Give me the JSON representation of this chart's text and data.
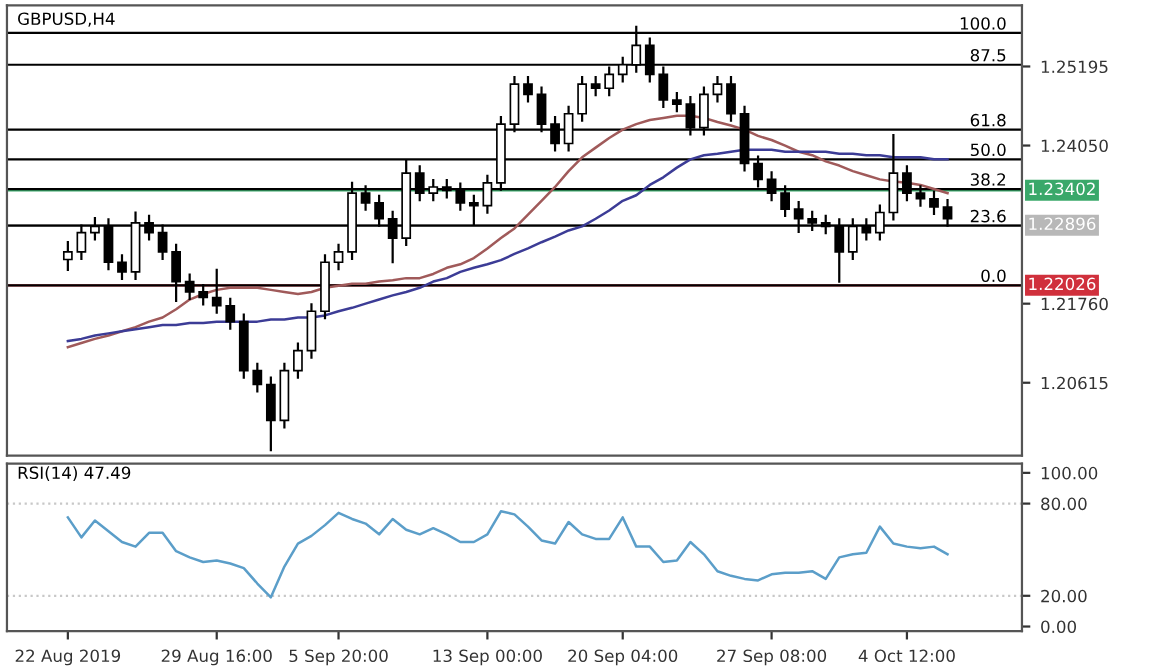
{
  "chart_data": [
    {
      "type": "candlestick",
      "title": "GBPUSD,H4",
      "tick_labels": "y",
      "grid": false,
      "color": "#000000",
      "categories": [
        null,
        null,
        null,
        null,
        null,
        null,
        null,
        null,
        null,
        null,
        null,
        null,
        null,
        null,
        null,
        null,
        null,
        null,
        null,
        null,
        null,
        null,
        null,
        null,
        null,
        null,
        null,
        null,
        null,
        null,
        null,
        null,
        null,
        null,
        null,
        null,
        null,
        null,
        null,
        null,
        null,
        null,
        null,
        null,
        null,
        null,
        null,
        null,
        null,
        null,
        null,
        null,
        null,
        null,
        null,
        null,
        null,
        null,
        null,
        null,
        null,
        null,
        null,
        null,
        null,
        null
      ],
      "ohlc": [
        [
          1.224,
          1.2265,
          1.2225,
          1.2251
        ],
        [
          1.2251,
          1.2289,
          1.2241,
          1.2279
        ],
        [
          1.2279,
          1.23,
          1.2269,
          1.2288
        ],
        [
          1.2288,
          1.2298,
          1.2226,
          1.2236
        ],
        [
          1.2236,
          1.2246,
          1.2212,
          1.2222
        ],
        [
          1.2222,
          1.2308,
          1.2212,
          1.2293
        ],
        [
          1.2293,
          1.2303,
          1.2269,
          1.2279
        ],
        [
          1.2279,
          1.2289,
          1.2241,
          1.2251
        ],
        [
          1.2251,
          1.2261,
          1.218,
          1.2208
        ],
        [
          1.2208,
          1.2218,
          1.2183,
          1.2193
        ],
        [
          1.2193,
          1.2203,
          1.2175,
          1.2185
        ],
        [
          1.2185,
          1.2225,
          1.2163,
          1.2173
        ],
        [
          1.2173,
          1.2183,
          1.214,
          1.215
        ],
        [
          1.215,
          1.216,
          1.2069,
          1.2079
        ],
        [
          1.2079,
          1.2089,
          1.2049,
          1.2059
        ],
        [
          1.2059,
          1.2069,
          1.1964,
          1.2007
        ],
        [
          1.2007,
          1.2089,
          1.1997,
          1.2079
        ],
        [
          1.2079,
          1.2118,
          1.2069,
          1.2108
        ],
        [
          1.2108,
          1.2175,
          1.2098,
          1.2165
        ],
        [
          1.2165,
          1.2246,
          1.2155,
          1.2236
        ],
        [
          1.2236,
          1.2261,
          1.2226,
          1.2251
        ],
        [
          1.2251,
          1.2351,
          1.2241,
          1.2336
        ],
        [
          1.2336,
          1.2346,
          1.2312,
          1.2322
        ],
        [
          1.2322,
          1.2332,
          1.2289,
          1.2299
        ],
        [
          1.2299,
          1.2309,
          1.2236,
          1.2271
        ],
        [
          1.2271,
          1.2383,
          1.2261,
          1.2365
        ],
        [
          1.2365,
          1.2375,
          1.2326,
          1.2336
        ],
        [
          1.2336,
          1.2355,
          1.2326,
          1.2345
        ],
        [
          1.2345,
          1.2355,
          1.233,
          1.234
        ],
        [
          1.234,
          1.235,
          1.2312,
          1.2322
        ],
        [
          1.2322,
          1.2332,
          1.229,
          1.2318
        ],
        [
          1.2318,
          1.2361,
          1.2308,
          1.2351
        ],
        [
          1.2351,
          1.2446,
          1.2341,
          1.2436
        ],
        [
          1.2436,
          1.2504,
          1.2426,
          1.2494
        ],
        [
          1.2494,
          1.2504,
          1.2469,
          1.2479
        ],
        [
          1.2479,
          1.2489,
          1.2426,
          1.2436
        ],
        [
          1.2436,
          1.2446,
          1.2398,
          1.2408
        ],
        [
          1.2408,
          1.2461,
          1.2398,
          1.2451
        ],
        [
          1.2451,
          1.2504,
          1.2441,
          1.2494
        ],
        [
          1.2494,
          1.2504,
          1.2478,
          1.2488
        ],
        [
          1.2488,
          1.2518,
          1.2478,
          1.2508
        ],
        [
          1.2508,
          1.2532,
          1.2498,
          1.2522
        ],
        [
          1.2522,
          1.2577,
          1.2512,
          1.255
        ],
        [
          1.255,
          1.256,
          1.2498,
          1.2508
        ],
        [
          1.2508,
          1.2518,
          1.2461,
          1.2471
        ],
        [
          1.2471,
          1.2481,
          1.2455,
          1.2465
        ],
        [
          1.2465,
          1.2475,
          1.2421,
          1.2431
        ],
        [
          1.2431,
          1.2489,
          1.2421,
          1.2479
        ],
        [
          1.2479,
          1.2504,
          1.2469,
          1.2494
        ],
        [
          1.2494,
          1.2504,
          1.2441,
          1.2451
        ],
        [
          1.2451,
          1.2461,
          1.2369,
          1.2379
        ],
        [
          1.2379,
          1.2389,
          1.2346,
          1.2356
        ],
        [
          1.2356,
          1.2366,
          1.2326,
          1.2336
        ],
        [
          1.2336,
          1.2346,
          1.2303,
          1.2313
        ],
        [
          1.2313,
          1.2323,
          1.228,
          1.2299
        ],
        [
          1.2299,
          1.2309,
          1.2283,
          1.2293
        ],
        [
          1.2293,
          1.2303,
          1.2278,
          1.2288
        ],
        [
          1.2288,
          1.2298,
          1.2208,
          1.2251
        ],
        [
          1.2251,
          1.2298,
          1.2241,
          1.2288
        ],
        [
          1.2288,
          1.2298,
          1.2269,
          1.2279
        ],
        [
          1.2279,
          1.2318,
          1.2269,
          1.2308
        ],
        [
          1.2308,
          1.242,
          1.2298,
          1.2365
        ],
        [
          1.2365,
          1.2375,
          1.2326,
          1.2336
        ],
        [
          1.2336,
          1.2346,
          1.2318,
          1.2328
        ],
        [
          1.2328,
          1.2338,
          1.2306,
          1.2316
        ],
        [
          1.2316,
          1.2326,
          1.2289,
          1.2299
        ]
      ],
      "series": [
        {
          "type": "line",
          "color": "#a05a5a",
          "values": [
            1.2113,
            1.2119,
            1.2125,
            1.213,
            1.2136,
            1.2142,
            1.215,
            1.2156,
            1.2168,
            1.2182,
            1.219,
            1.2196,
            1.2199,
            1.2199,
            1.2199,
            1.2196,
            1.2193,
            1.219,
            1.2193,
            1.2199,
            1.2202,
            1.2205,
            1.2205,
            1.2208,
            1.221,
            1.2213,
            1.2213,
            1.2219,
            1.2228,
            1.2233,
            1.2242,
            1.2256,
            1.2271,
            1.2285,
            1.2305,
            1.2325,
            1.2345,
            1.2368,
            1.2388,
            1.2402,
            1.2416,
            1.2428,
            1.2436,
            1.2442,
            1.2445,
            1.2448,
            1.2448,
            1.2445,
            1.2439,
            1.2434,
            1.2428,
            1.2419,
            1.2413,
            1.2405,
            1.2396,
            1.2391,
            1.2382,
            1.2376,
            1.2368,
            1.2362,
            1.2356,
            1.2353,
            1.2351,
            1.2348,
            1.2342,
            1.2336
          ]
        },
        {
          "type": "line",
          "color": "#3c3c96",
          "values": [
            1.2122,
            1.2125,
            1.213,
            1.2133,
            1.2136,
            1.2139,
            1.2142,
            1.2145,
            1.2145,
            1.2148,
            1.2148,
            1.215,
            1.215,
            1.215,
            1.215,
            1.2153,
            1.2153,
            1.2156,
            1.2156,
            1.2159,
            1.2165,
            1.217,
            1.2176,
            1.2182,
            1.2188,
            1.2193,
            1.2199,
            1.2208,
            1.2213,
            1.2222,
            1.2228,
            1.2233,
            1.2239,
            1.2248,
            1.2256,
            1.2265,
            1.2273,
            1.2282,
            1.2288,
            1.2299,
            1.2311,
            1.2325,
            1.2333,
            1.2348,
            1.2359,
            1.2373,
            1.2385,
            1.2391,
            1.2393,
            1.2396,
            1.2399,
            1.2399,
            1.2399,
            1.2396,
            1.2396,
            1.2396,
            1.2396,
            1.2393,
            1.2393,
            1.2391,
            1.2391,
            1.2388,
            1.2388,
            1.2388,
            1.2385,
            1.2385
          ]
        }
      ],
      "ylim": [
        1.1956,
        1.2608
      ],
      "yticks": [
        1.25195,
        {
          "value": 1.2405,
          "label": "1.24050"
        },
        {
          "value": 1.2176,
          "label": "1.21760"
        },
        1.20615
      ],
      "ref_lines": [
        {
          "axis": "y",
          "value": 1.23402,
          "label": "1.23402",
          "color": "#3aa86a",
          "line_style": "solid"
        },
        {
          "axis": "y",
          "value": 1.22896,
          "label": "1.22896",
          "color": "#b8b8b8",
          "line_style": "solid"
        },
        {
          "axis": "y",
          "value": 1.22026,
          "label": "1.22026",
          "color": "#d0303c",
          "line_style": "solid"
        },
        {
          "axis": "y",
          "value": 1.2568,
          "color": "#000000",
          "line_style": "solid"
        },
        {
          "axis": "y",
          "value": 1.2522,
          "color": "#000000",
          "line_style": "solid"
        },
        {
          "axis": "y",
          "value": 1.2428,
          "color": "#000000",
          "line_style": "solid"
        },
        {
          "axis": "y",
          "value": 1.2385,
          "color": "#000000",
          "line_style": "solid"
        },
        {
          "axis": "y",
          "value": 1.2342,
          "color": "#000000",
          "line_style": "solid"
        },
        {
          "axis": "y",
          "value": 1.2289,
          "color": "#000000",
          "line_style": "solid"
        },
        {
          "axis": "y",
          "value": 1.22026,
          "color": "#000000",
          "line_style": "solid"
        }
      ],
      "annotations": [
        {
          "text": "100.0",
          "y": 1.2568
        },
        {
          "text": "87.5",
          "y": 1.2522
        },
        {
          "text": "61.8",
          "y": 1.2428
        },
        {
          "text": "50.0",
          "y": 1.2385
        },
        {
          "text": "38.2",
          "y": 1.2342
        },
        {
          "text": "23.6",
          "y": 1.2289
        },
        {
          "text": "0.0",
          "y": 1.22026
        }
      ]
    },
    {
      "type": "line",
      "title": "RSI(14) 47.49",
      "grid": false,
      "categories": [
        "22 Aug 2019",
        null,
        null,
        null,
        null,
        null,
        null,
        null,
        null,
        null,
        null,
        "29 Aug 16:00",
        null,
        null,
        null,
        null,
        null,
        null,
        null,
        null,
        "5 Sep 20:00",
        null,
        null,
        null,
        null,
        null,
        null,
        null,
        null,
        null,
        null,
        "13 Sep 00:00",
        null,
        null,
        null,
        null,
        null,
        null,
        null,
        null,
        null,
        "20 Sep 04:00",
        null,
        null,
        null,
        null,
        null,
        null,
        null,
        null,
        null,
        null,
        "27 Sep 08:00",
        null,
        null,
        null,
        null,
        null,
        null,
        null,
        null,
        null,
        "4 Oct 12:00",
        null,
        null,
        null
      ],
      "series": [
        {
          "color": "#5b9ec9",
          "values": [
            71,
            58,
            69,
            62,
            55,
            52,
            61,
            61,
            49,
            45,
            42,
            43,
            41,
            38,
            28,
            19,
            39,
            54,
            59,
            66,
            74,
            70,
            67,
            60,
            70,
            63,
            60,
            64,
            60,
            55,
            55,
            60,
            75,
            73,
            65,
            56,
            54,
            68,
            60,
            57,
            57,
            71,
            52,
            52,
            42,
            43,
            55,
            47,
            36,
            33,
            31,
            30,
            34,
            35,
            35,
            36,
            31,
            45,
            47,
            48,
            65,
            54,
            52,
            51,
            52,
            47
          ]
        }
      ],
      "ylim": [
        -3,
        106
      ],
      "yticks": [
        {
          "value": 0,
          "label": "0.00"
        },
        {
          "value": 20,
          "label": "20.00"
        },
        {
          "value": 80,
          "label": "80.00"
        },
        {
          "value": 100,
          "label": "100.00"
        }
      ],
      "ref_lines": [
        {
          "axis": "y",
          "value": 20,
          "color": "#c8c8c8",
          "line_style": "dotted"
        },
        {
          "axis": "y",
          "value": 80,
          "color": "#c8c8c8",
          "line_style": "dotted"
        }
      ]
    }
  ]
}
